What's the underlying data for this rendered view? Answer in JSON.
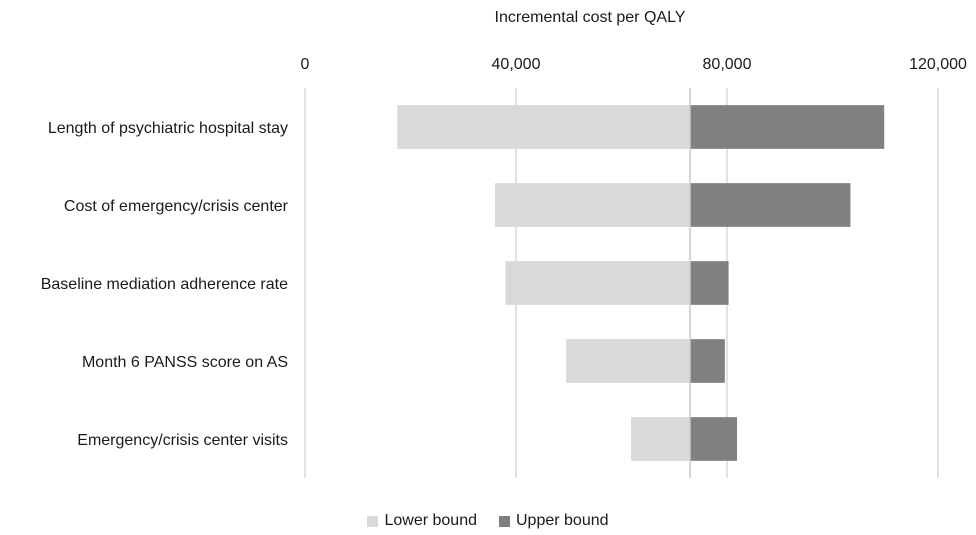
{
  "chart_data": {
    "type": "bar",
    "orientation": "horizontal",
    "chart_style": "tornado",
    "title": "",
    "xlabel": "Incremental cost per QALY",
    "ylabel": "",
    "xlim": [
      0,
      120000
    ],
    "x_ticks": [
      0,
      40000,
      80000,
      120000
    ],
    "x_tick_labels": [
      "0",
      "40,000",
      "80,000",
      "120,000"
    ],
    "axis_position": "top",
    "grid": true,
    "legend_position": "bottom",
    "base_value": 73000,
    "categories": [
      "Length of psychiatric hospital stay",
      "Cost of emergency/crisis center",
      "Baseline mediation adherence rate",
      "Month 6 PANSS score on AS",
      "Emergency/crisis center visits"
    ],
    "series": [
      {
        "name": "Lower bound",
        "color": "#d9d9d9",
        "values": [
          17500,
          36000,
          38000,
          49500,
          61800
        ]
      },
      {
        "name": "Upper bound",
        "color": "#808080",
        "values": [
          109800,
          103400,
          80300,
          79600,
          81900
        ]
      }
    ]
  }
}
